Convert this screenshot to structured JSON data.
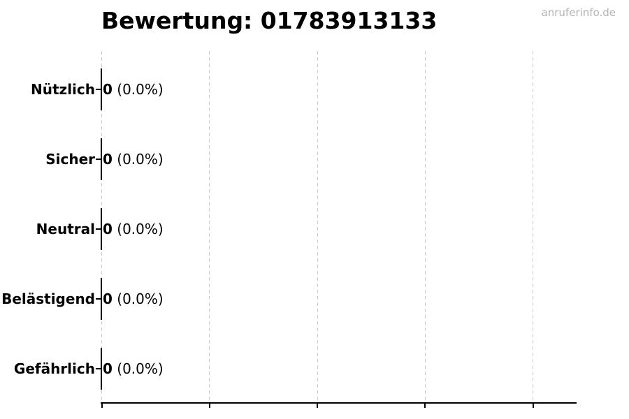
{
  "header": {
    "watermark": "anruferinfo.de"
  },
  "colors": {
    "background": "#ffffff",
    "text": "#000000",
    "watermark": "#b3b3b3",
    "gridline": "#cbcbcb",
    "axis": "#000000"
  },
  "chart_data": {
    "type": "bar",
    "orientation": "horizontal",
    "title": "Bewertung: 01783913133",
    "categories": [
      "Nützlich",
      "Sicher",
      "Neutral",
      "Belästigend",
      "Gefährlich"
    ],
    "values": [
      0,
      0,
      0,
      0,
      0
    ],
    "value_labels": [
      {
        "count": "0",
        "percent": "(0.0%)"
      },
      {
        "count": "0",
        "percent": "(0.0%)"
      },
      {
        "count": "0",
        "percent": "(0.0%)"
      },
      {
        "count": "0",
        "percent": "(0.0%)"
      },
      {
        "count": "0",
        "percent": "(0.0%)"
      }
    ],
    "xlabel": "",
    "ylabel": "",
    "x_tick_labels": [],
    "gridline_count": 5,
    "grid": "vertical dashed",
    "legend": "none",
    "bar_fill": "none",
    "bar_edge_color": "#000000"
  }
}
